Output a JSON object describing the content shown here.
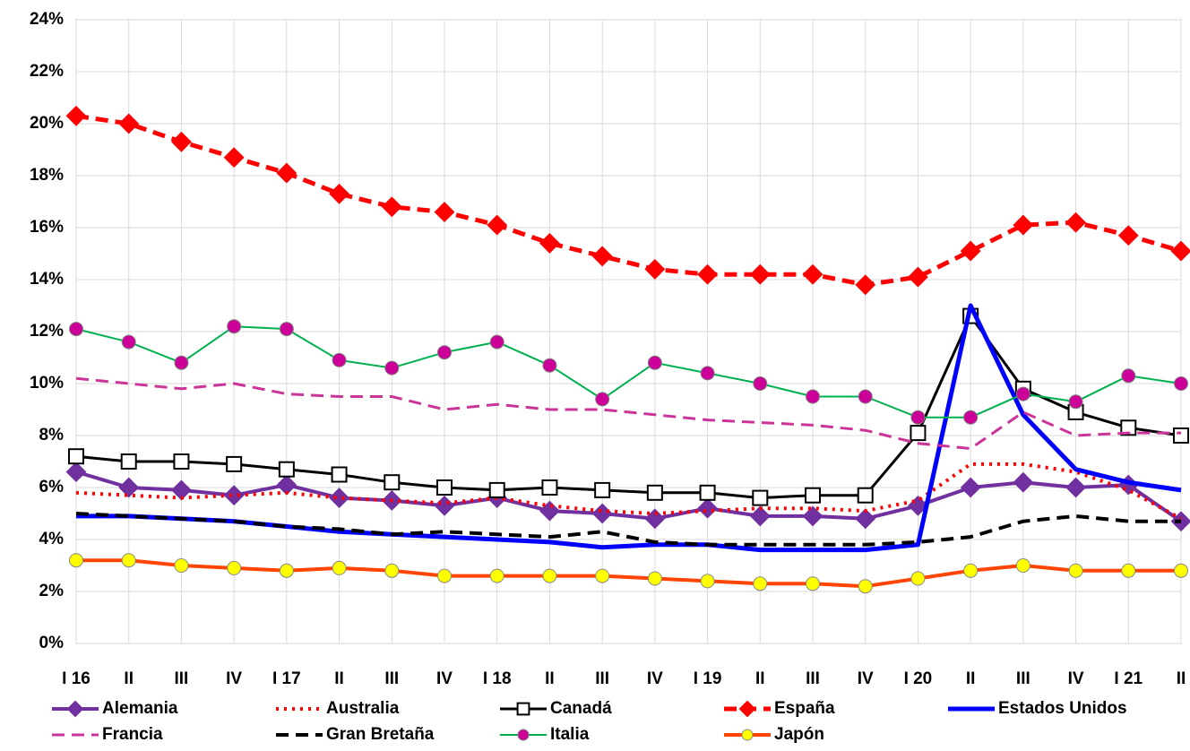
{
  "chart_data": {
    "type": "line",
    "categories": [
      "I 16",
      "II",
      "III",
      "IV",
      "I 17",
      "II",
      "III",
      "IV",
      "I 18",
      "II",
      "III",
      "IV",
      "I 19",
      "II",
      "III",
      "IV",
      "I 20",
      "II",
      "III",
      "IV",
      "I 21",
      "II"
    ],
    "ylim": [
      0,
      24
    ],
    "yticks": [
      {
        "value": 0,
        "label": "0%"
      },
      {
        "value": 2,
        "label": "2%"
      },
      {
        "value": 4,
        "label": "4%"
      },
      {
        "value": 6,
        "label": "6%"
      },
      {
        "value": 8,
        "label": "8%"
      },
      {
        "value": 10,
        "label": "10%"
      },
      {
        "value": 12,
        "label": "12%"
      },
      {
        "value": 14,
        "label": "14%"
      },
      {
        "value": 16,
        "label": "16%"
      },
      {
        "value": 18,
        "label": "18%"
      },
      {
        "value": 20,
        "label": "20%"
      },
      {
        "value": 22,
        "label": "22%"
      },
      {
        "value": 24,
        "label": "24%"
      }
    ],
    "grid": true,
    "legend": "bottom",
    "series": [
      {
        "name": "Alemania",
        "color": "#7030a0",
        "dash": "solid",
        "width": 4,
        "marker": "diamond",
        "marker_fill": "#7030a0",
        "values": [
          6.6,
          6.0,
          5.9,
          5.7,
          6.1,
          5.6,
          5.5,
          5.3,
          5.6,
          5.1,
          5.0,
          4.8,
          5.2,
          4.9,
          4.9,
          4.8,
          5.3,
          6.0,
          6.2,
          6.0,
          6.1,
          4.7
        ]
      },
      {
        "name": "Australia",
        "color": "#ff0000",
        "dash": "dot",
        "width": 4,
        "marker": "none",
        "marker_fill": "#ff0000",
        "values": [
          5.8,
          5.7,
          5.6,
          5.7,
          5.8,
          5.6,
          5.5,
          5.4,
          5.6,
          5.3,
          5.1,
          5.0,
          5.1,
          5.2,
          5.2,
          5.1,
          5.5,
          6.9,
          6.9,
          6.6,
          5.9,
          4.8
        ]
      },
      {
        "name": "Canadá",
        "color": "#000000",
        "dash": "solid",
        "width": 3,
        "marker": "square",
        "marker_fill": "#ffffff",
        "values": [
          7.2,
          7.0,
          7.0,
          6.9,
          6.7,
          6.5,
          6.2,
          6.0,
          5.9,
          6.0,
          5.9,
          5.8,
          5.8,
          5.6,
          5.7,
          5.7,
          8.1,
          12.6,
          9.8,
          8.9,
          8.3,
          8.0
        ]
      },
      {
        "name": "España",
        "color": "#ff0000",
        "dash": "dash",
        "width": 5,
        "marker": "diamond",
        "marker_fill": "#ff0000",
        "values": [
          20.3,
          20.0,
          19.3,
          18.7,
          18.1,
          17.3,
          16.8,
          16.6,
          16.1,
          15.4,
          14.9,
          14.4,
          14.2,
          14.2,
          14.2,
          13.8,
          14.1,
          15.1,
          16.1,
          16.2,
          15.7,
          15.1
        ]
      },
      {
        "name": "Estados Unidos",
        "color": "#0000ff",
        "dash": "solid",
        "width": 5,
        "marker": "none",
        "marker_fill": "#0000ff",
        "values": [
          4.9,
          4.9,
          4.8,
          4.7,
          4.5,
          4.3,
          4.2,
          4.1,
          4.0,
          3.9,
          3.7,
          3.8,
          3.8,
          3.6,
          3.6,
          3.6,
          3.8,
          13.0,
          8.8,
          6.7,
          6.2,
          5.9
        ]
      },
      {
        "name": "Francia",
        "color": "#cc3399",
        "dash": "dash",
        "width": 3,
        "marker": "none",
        "marker_fill": "#cc3399",
        "values": [
          10.2,
          10.0,
          9.8,
          10.0,
          9.6,
          9.5,
          9.5,
          9.0,
          9.2,
          9.0,
          9.0,
          8.8,
          8.6,
          8.5,
          8.4,
          8.2,
          7.7,
          7.5,
          8.9,
          8.0,
          8.1,
          8.1
        ]
      },
      {
        "name": "Gran Bretaña",
        "color": "#000000",
        "dash": "dash",
        "width": 4,
        "marker": "none",
        "marker_fill": "#000000",
        "values": [
          5.0,
          4.9,
          4.8,
          4.7,
          4.5,
          4.4,
          4.2,
          4.3,
          4.2,
          4.1,
          4.3,
          3.9,
          3.8,
          3.8,
          3.8,
          3.8,
          3.9,
          4.1,
          4.7,
          4.9,
          4.7,
          4.7
        ]
      },
      {
        "name": "Italia",
        "color": "#00b050",
        "dash": "solid",
        "width": 2,
        "marker": "circle",
        "marker_fill": "#cc0099",
        "values": [
          12.1,
          11.6,
          10.8,
          12.2,
          12.1,
          10.9,
          10.6,
          11.2,
          11.6,
          10.7,
          9.4,
          10.8,
          10.4,
          10.0,
          9.5,
          9.5,
          8.7,
          8.7,
          9.6,
          9.3,
          10.3,
          10.0
        ]
      },
      {
        "name": "Japón",
        "color": "#ff4500",
        "dash": "solid",
        "width": 4,
        "marker": "circle",
        "marker_fill": "#ffff00",
        "values": [
          3.2,
          3.2,
          3.0,
          2.9,
          2.8,
          2.9,
          2.8,
          2.6,
          2.6,
          2.6,
          2.6,
          2.5,
          2.4,
          2.3,
          2.3,
          2.2,
          2.5,
          2.8,
          3.0,
          2.8,
          2.8,
          2.8
        ]
      }
    ]
  }
}
